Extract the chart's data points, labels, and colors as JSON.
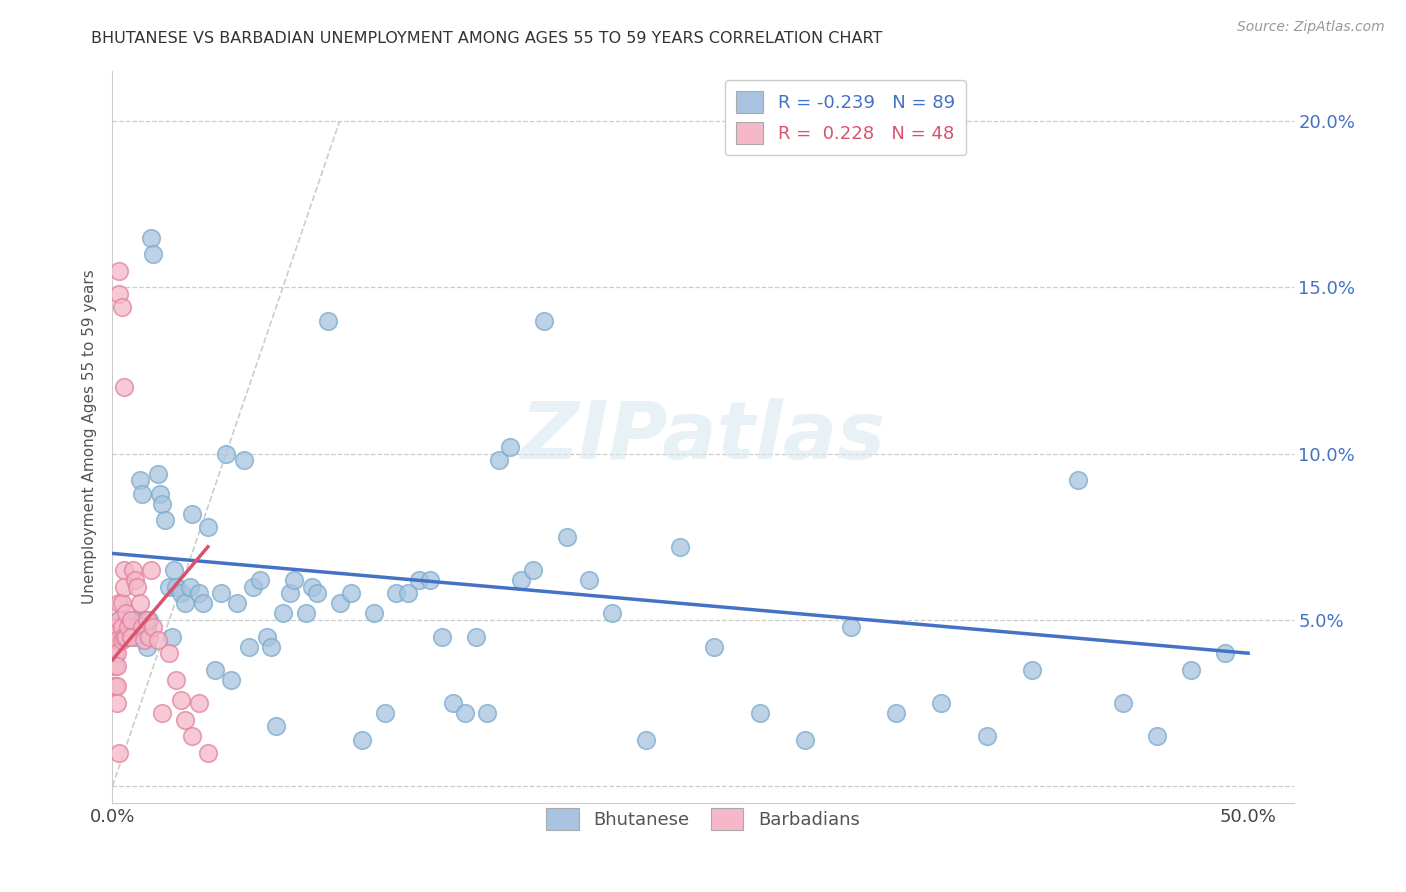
{
  "title": "BHUTANESE VS BARBADIAN UNEMPLOYMENT AMONG AGES 55 TO 59 YEARS CORRELATION CHART",
  "source": "Source: ZipAtlas.com",
  "ylabel": "Unemployment Among Ages 55 to 59 years",
  "xlim": [
    0.0,
    0.52
  ],
  "ylim": [
    -0.005,
    0.215
  ],
  "xticks": [
    0.0,
    0.05,
    0.1,
    0.15,
    0.2,
    0.25,
    0.3,
    0.35,
    0.4,
    0.45,
    0.5
  ],
  "yticks": [
    0.0,
    0.05,
    0.1,
    0.15,
    0.2
  ],
  "legend_r_bhutanese": "-0.239",
  "legend_n_bhutanese": "89",
  "legend_r_barbadian": " 0.228",
  "legend_n_barbadian": "48",
  "bhutanese_color": "#a8c4e0",
  "bhutanese_edge_color": "#7aaacb",
  "barbadian_color": "#f4b8c8",
  "barbadian_edge_color": "#e080a0",
  "bhutanese_line_color": "#4472c4",
  "barbadian_line_color": "#d9536f",
  "ref_line_color": "#cccccc",
  "watermark": "ZIPatlas",
  "bhutanese_x": [
    0.003,
    0.004,
    0.005,
    0.006,
    0.006,
    0.007,
    0.008,
    0.01,
    0.01,
    0.011,
    0.012,
    0.013,
    0.014,
    0.015,
    0.015,
    0.016,
    0.017,
    0.018,
    0.02,
    0.021,
    0.022,
    0.023,
    0.025,
    0.026,
    0.027,
    0.028,
    0.03,
    0.032,
    0.034,
    0.035,
    0.038,
    0.04,
    0.042,
    0.045,
    0.048,
    0.05,
    0.052,
    0.055,
    0.058,
    0.06,
    0.062,
    0.065,
    0.068,
    0.07,
    0.072,
    0.075,
    0.078,
    0.08,
    0.085,
    0.088,
    0.09,
    0.095,
    0.1,
    0.105,
    0.11,
    0.115,
    0.12,
    0.125,
    0.13,
    0.135,
    0.14,
    0.145,
    0.15,
    0.155,
    0.16,
    0.165,
    0.17,
    0.175,
    0.18,
    0.185,
    0.19,
    0.2,
    0.21,
    0.22,
    0.235,
    0.25,
    0.265,
    0.285,
    0.305,
    0.325,
    0.345,
    0.365,
    0.385,
    0.405,
    0.425,
    0.445,
    0.46,
    0.475,
    0.49
  ],
  "bhutanese_y": [
    0.05,
    0.048,
    0.047,
    0.05,
    0.045,
    0.048,
    0.046,
    0.05,
    0.045,
    0.048,
    0.092,
    0.088,
    0.05,
    0.048,
    0.042,
    0.05,
    0.165,
    0.16,
    0.094,
    0.088,
    0.085,
    0.08,
    0.06,
    0.045,
    0.065,
    0.06,
    0.058,
    0.055,
    0.06,
    0.082,
    0.058,
    0.055,
    0.078,
    0.035,
    0.058,
    0.1,
    0.032,
    0.055,
    0.098,
    0.042,
    0.06,
    0.062,
    0.045,
    0.042,
    0.018,
    0.052,
    0.058,
    0.062,
    0.052,
    0.06,
    0.058,
    0.14,
    0.055,
    0.058,
    0.014,
    0.052,
    0.022,
    0.058,
    0.058,
    0.062,
    0.062,
    0.045,
    0.025,
    0.022,
    0.045,
    0.022,
    0.098,
    0.102,
    0.062,
    0.065,
    0.14,
    0.075,
    0.062,
    0.052,
    0.014,
    0.072,
    0.042,
    0.022,
    0.014,
    0.048,
    0.022,
    0.025,
    0.015,
    0.035,
    0.092,
    0.025,
    0.015,
    0.035,
    0.04
  ],
  "barbadian_x": [
    0.001,
    0.001,
    0.001,
    0.001,
    0.001,
    0.002,
    0.002,
    0.002,
    0.002,
    0.002,
    0.002,
    0.003,
    0.003,
    0.003,
    0.003,
    0.003,
    0.004,
    0.004,
    0.004,
    0.004,
    0.005,
    0.005,
    0.005,
    0.005,
    0.006,
    0.006,
    0.007,
    0.008,
    0.008,
    0.009,
    0.01,
    0.011,
    0.012,
    0.013,
    0.014,
    0.015,
    0.016,
    0.017,
    0.018,
    0.02,
    0.022,
    0.025,
    0.028,
    0.03,
    0.032,
    0.035,
    0.038,
    0.042
  ],
  "barbadian_y": [
    0.048,
    0.044,
    0.04,
    0.036,
    0.03,
    0.048,
    0.044,
    0.04,
    0.036,
    0.03,
    0.025,
    0.155,
    0.148,
    0.055,
    0.05,
    0.01,
    0.144,
    0.055,
    0.048,
    0.044,
    0.12,
    0.065,
    0.06,
    0.045,
    0.052,
    0.045,
    0.048,
    0.05,
    0.045,
    0.065,
    0.062,
    0.06,
    0.055,
    0.048,
    0.044,
    0.05,
    0.045,
    0.065,
    0.048,
    0.044,
    0.022,
    0.04,
    0.032,
    0.026,
    0.02,
    0.015,
    0.025,
    0.01
  ]
}
